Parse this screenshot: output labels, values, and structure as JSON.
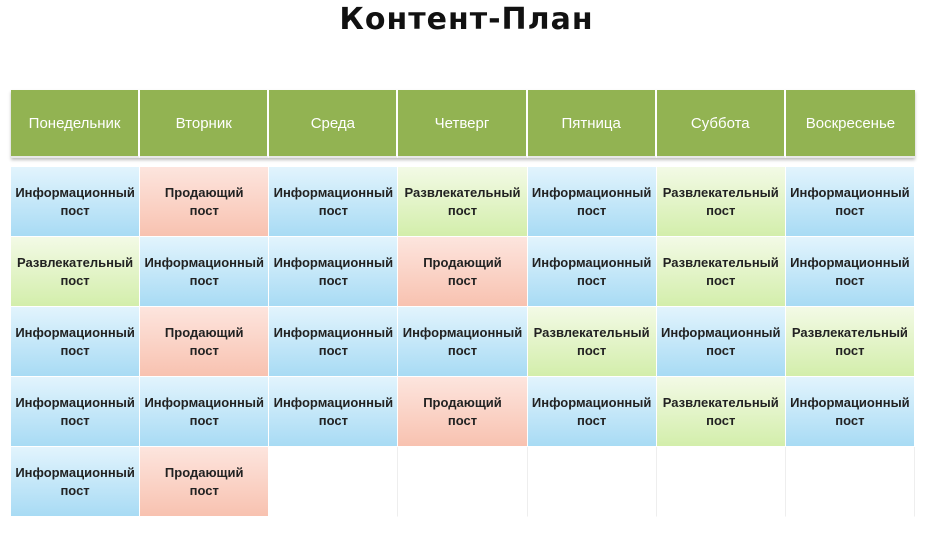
{
  "title": "Контент-План",
  "days": [
    "Понедельник",
    "Вторник",
    "Среда",
    "Четверг",
    "Пятница",
    "Суббота",
    "Воскресенье"
  ],
  "types": {
    "info": [
      "Информационный",
      "пост"
    ],
    "sell": [
      "Продающий",
      "пост"
    ],
    "fun": [
      "Развлекательный",
      "пост"
    ]
  },
  "colors": {
    "header": "#92b352",
    "info": "#a8dbf4",
    "sell": "#f8c2b0",
    "fun": "#d3eeab"
  },
  "rows": [
    [
      "info",
      "sell",
      "info",
      "fun",
      "info",
      "fun",
      "info"
    ],
    [
      "fun",
      "info",
      "info",
      "sell",
      "info",
      "fun",
      "info"
    ],
    [
      "info",
      "sell",
      "info",
      "info",
      "fun",
      "info",
      "fun"
    ],
    [
      "info",
      "info",
      "info",
      "sell",
      "info",
      "fun",
      "info"
    ],
    [
      "info",
      "sell",
      "",
      "",
      "",
      "",
      ""
    ]
  ]
}
